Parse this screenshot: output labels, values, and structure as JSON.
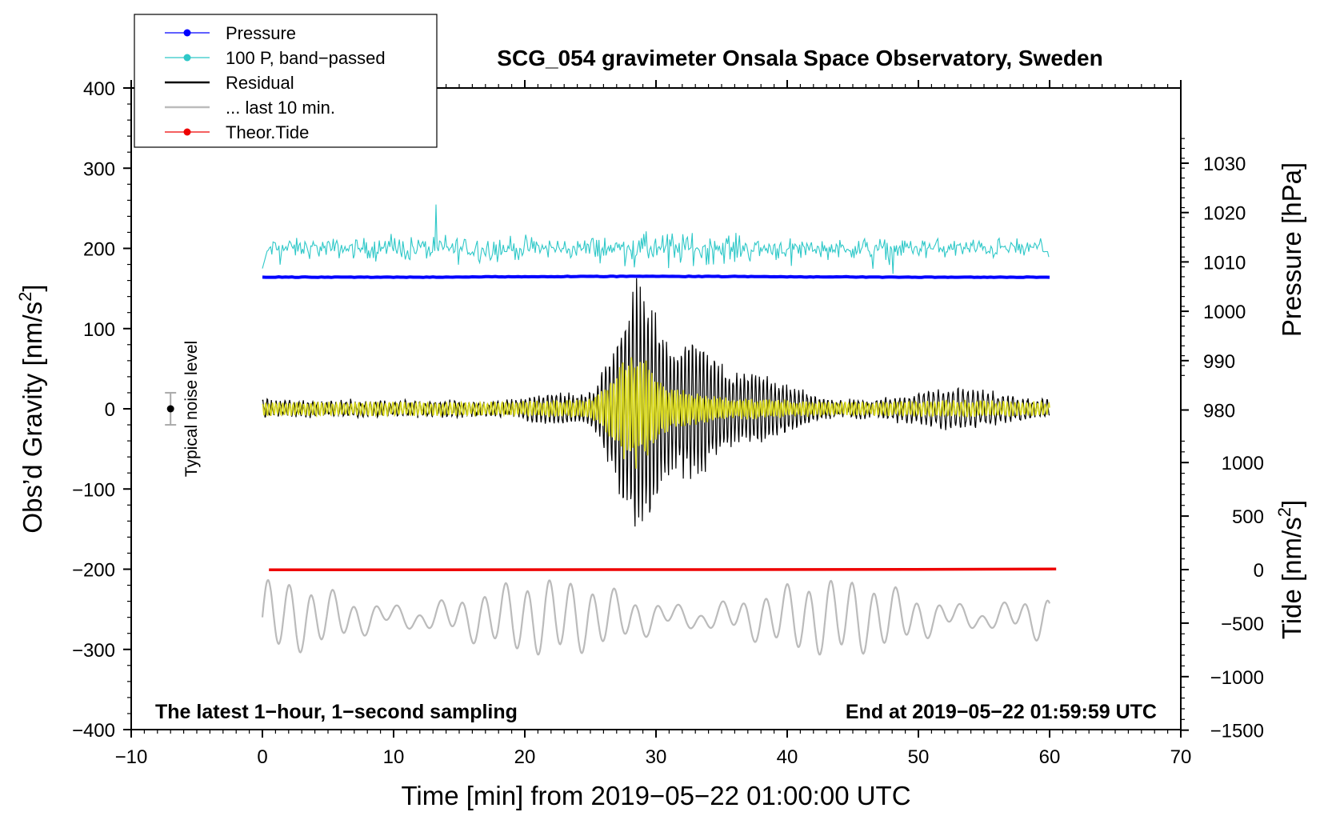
{
  "chart_data": {
    "type": "line",
    "title": "SCG_054 gravimeter Onsala Space Observatory, Sweden",
    "xlabel": "Time [min] from 2019−05−22 01:00:00 UTC",
    "ylabel": "Obs’d Gravity [nm/s",
    "ylabel_sup": "2",
    "ylabel_end": "]",
    "y2label": "Pressure [hPa]",
    "y3label": "Tide [nm/s",
    "y3label_sup": "2",
    "y3label_end": "]",
    "xlim": [
      -10,
      70
    ],
    "ylim": [
      -400,
      400
    ],
    "x_ticks": [
      "−10",
      "0",
      "10",
      "20",
      "30",
      "40",
      "50",
      "60",
      "70"
    ],
    "y_ticks": [
      "400",
      "300",
      "200",
      "100",
      "0",
      "−100",
      "−200",
      "−300",
      "−400"
    ],
    "pressure_axis": {
      "ticks": [
        "1030",
        "1020",
        "1010",
        "1000",
        "990",
        "980"
      ],
      "values": [
        1030,
        1020,
        1010,
        1000,
        990,
        980
      ]
    },
    "tide_axis": {
      "ticks": [
        "1000",
        "500",
        "0",
        "−500",
        "−1000",
        "−1500"
      ],
      "values": [
        1000,
        500,
        0,
        -500,
        -1000,
        -1500
      ]
    },
    "footer_left": "The latest 1−hour, 1−second sampling",
    "footer_right": "End at 2019−05−22 01:59:59 UTC",
    "noise_label": "Typical noise level",
    "legend_placement": "top-left",
    "legend": [
      {
        "label": "Pressure",
        "color": "#0000ff",
        "marker": true
      },
      {
        "label": "100 P, band−passed",
        "color": "#2ec8c8",
        "marker": true
      },
      {
        "label": "Residual",
        "color": "#000000",
        "marker": false
      },
      {
        "label": "... last 10 min.",
        "color": "#bbbbbb",
        "marker": false
      },
      {
        "label": "Theor.Tide",
        "color": "#ee0000",
        "marker": true
      }
    ],
    "series": [
      {
        "name": "Pressure",
        "axis": "pressure_hPa",
        "color": "#0000ff",
        "x": [
          0,
          10,
          20,
          30,
          40,
          50,
          60
        ],
        "values": [
          1006.9,
          1006.9,
          1007.0,
          1007.1,
          1007.0,
          1006.9,
          1006.9
        ]
      },
      {
        "name": "100 P, band−passed",
        "axis": "gravity_nm_s2",
        "color": "#2ec8c8",
        "x": [
          0,
          5,
          10,
          15,
          20,
          25,
          30,
          35,
          40,
          45,
          50,
          55,
          60
        ],
        "values": [
          200,
          200,
          200,
          200,
          200,
          200,
          202,
          200,
          200,
          200,
          200,
          200,
          200
        ]
      },
      {
        "name": "Residual",
        "axis": "gravity_nm_s2",
        "color": "#000000",
        "x": [
          0,
          5,
          10,
          15,
          20,
          25,
          27,
          29,
          31,
          33,
          35,
          40,
          45,
          50,
          55,
          60
        ],
        "values": [
          0,
          0,
          0,
          0,
          0,
          0,
          0,
          0,
          0,
          0,
          0,
          0,
          0,
          0,
          0,
          0
        ]
      },
      {
        "name": "... last 10 min.",
        "axis": "gravity_nm_s2",
        "color": "#bbbbbb",
        "x": [
          0,
          10,
          20,
          30,
          40,
          50,
          60
        ],
        "values": [
          -260,
          -260,
          -260,
          -260,
          -260,
          -260,
          -260
        ]
      },
      {
        "name": "Theor.Tide",
        "axis": "tide_nm_s2",
        "color": "#ee0000",
        "x": [
          0.5,
          31.5,
          49.5,
          60.5
        ],
        "values": [
          -2,
          0,
          2,
          5
        ]
      }
    ],
    "noise_bar": {
      "x": -7,
      "center": 0,
      "half_range": 20
    }
  }
}
